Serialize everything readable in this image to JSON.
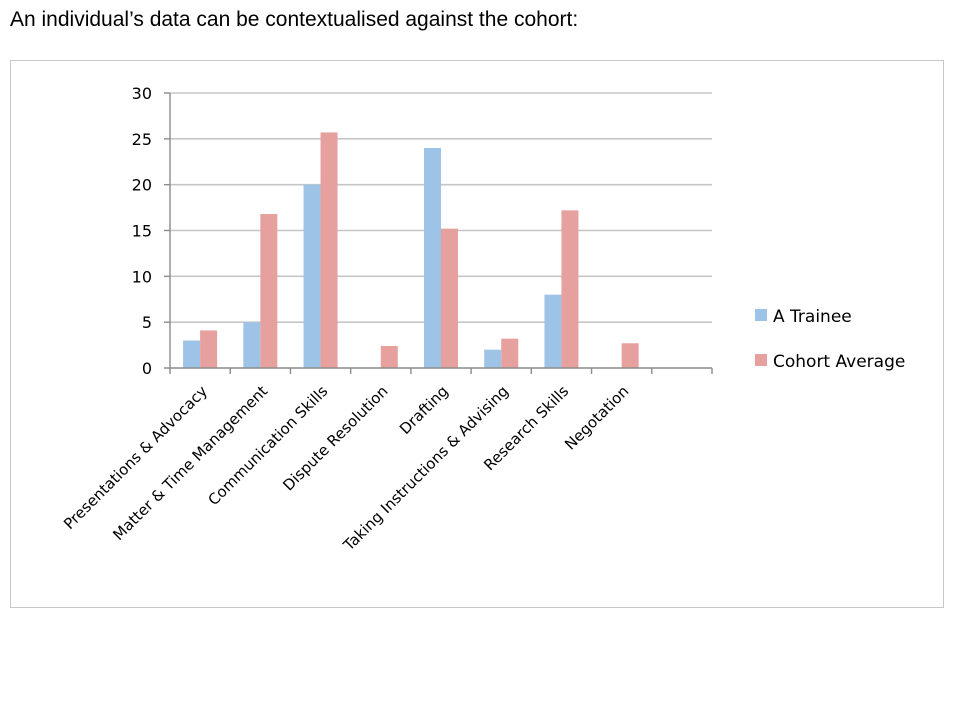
{
  "heading": "An individual’s data can be contextualised against the cohort:",
  "chart_data": {
    "type": "bar",
    "title": "",
    "xlabel": "",
    "ylabel": "",
    "ylim": [
      0,
      30
    ],
    "yticks": [
      0,
      5,
      10,
      15,
      20,
      25,
      30
    ],
    "grid": true,
    "legend_position": "right",
    "categories": [
      "Presentations & Advocacy",
      "Matter & Time Management",
      "Communication Skills",
      "Dispute Resolution",
      "Drafting",
      "Taking Instructions & Advising",
      "Research Skills",
      "Negotation"
    ],
    "series": [
      {
        "name": "A Trainee",
        "color": "#9DC3E6",
        "values": [
          3,
          5,
          20,
          0,
          24,
          2,
          8,
          0
        ]
      },
      {
        "name": "Cohort Average",
        "color": "#E6A19F",
        "values": [
          4.1,
          16.8,
          25.7,
          2.4,
          15.2,
          3.2,
          17.2,
          2.7
        ]
      }
    ]
  }
}
